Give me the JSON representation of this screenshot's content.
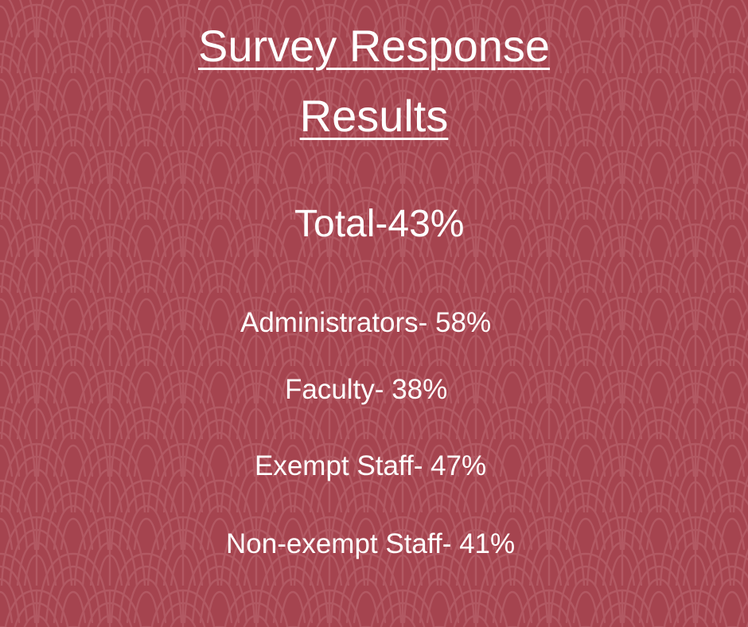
{
  "colors": {
    "background": "#a5444f",
    "pattern_line": "#bc6b74",
    "text": "#ffffff"
  },
  "title": {
    "line1": "Survey Response ",
    "line2": "Results"
  },
  "total": "Total-43%",
  "stats": [
    {
      "text": "Administrators- 58%"
    },
    {
      "text": "Faculty- 38%"
    },
    {
      "text": "Exempt Staff- 47%"
    },
    {
      "text": "Non-exempt Staff- 41%"
    }
  ]
}
